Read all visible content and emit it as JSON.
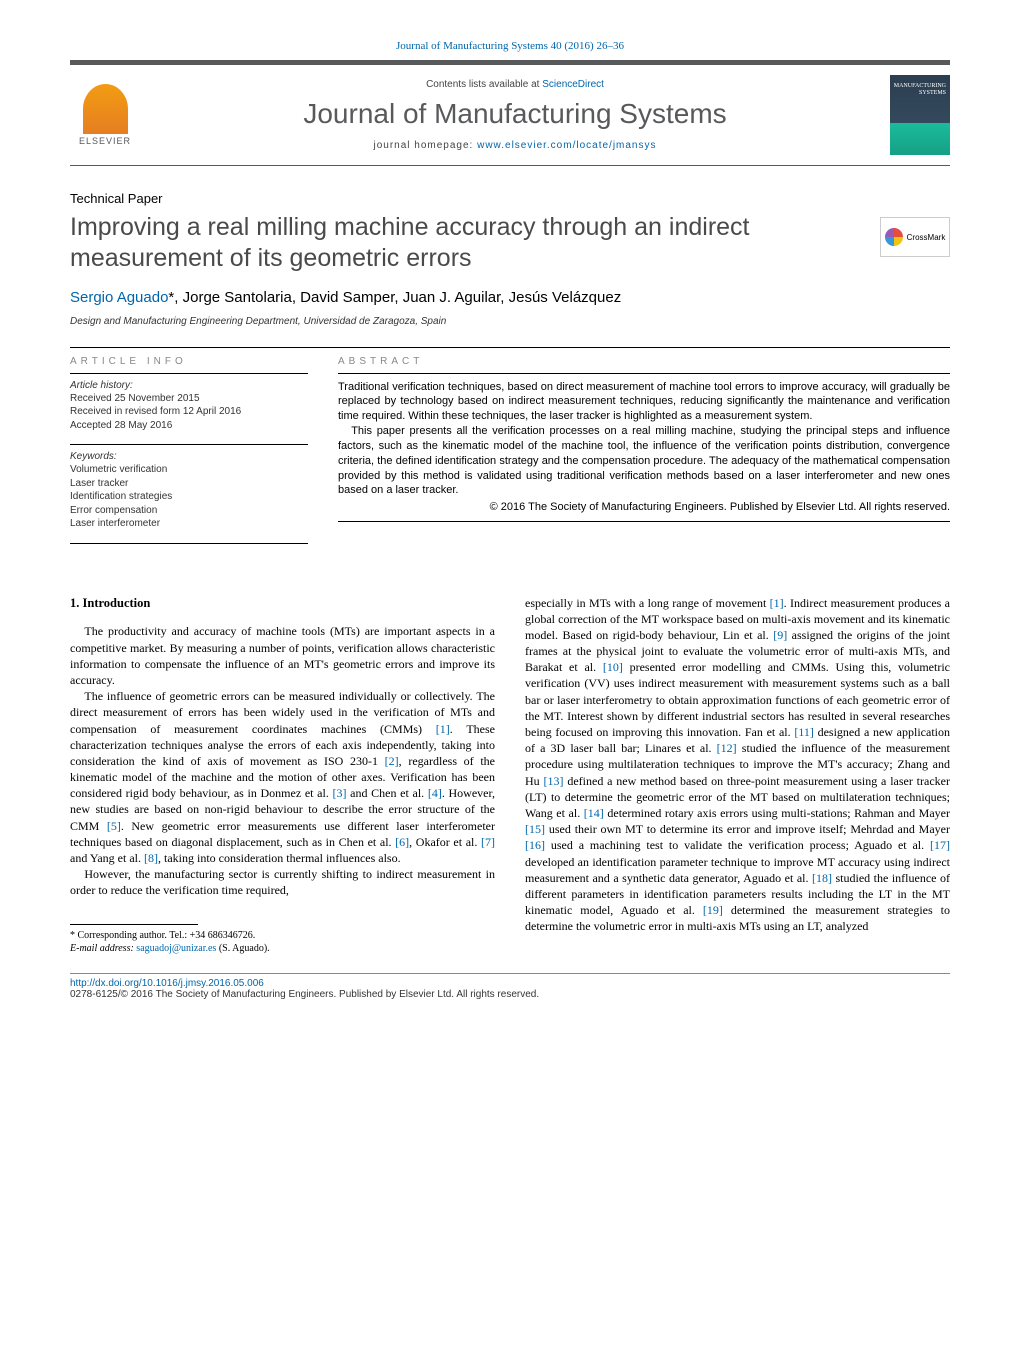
{
  "top_link": "Journal of Manufacturing Systems 40 (2016) 26–36",
  "header": {
    "elsevier": "ELSEVIER",
    "contents_prefix": "Contents lists available at ",
    "contents_link": "ScienceDirect",
    "journal_name": "Journal of Manufacturing Systems",
    "homepage_prefix": "journal homepage: ",
    "homepage_link": "www.elsevier.com/locate/jmansys",
    "cover_text": "MANUFACTURING SYSTEMS"
  },
  "paper_type": "Technical Paper",
  "title": "Improving a real milling machine accuracy through an indirect measurement of its geometric errors",
  "crossmark": "CrossMark",
  "authors_html": "Sergio Aguado",
  "authors_rest": ", Jorge Santolaria, David Samper, Juan J. Aguilar, Jesús Velázquez",
  "corresponding_mark": "*",
  "affiliation": "Design and Manufacturing Engineering Department, Universidad de Zaragoza, Spain",
  "article_info": {
    "heading": "ARTICLE INFO",
    "history_label": "Article history:",
    "received": "Received 25 November 2015",
    "revised": "Received in revised form 12 April 2016",
    "accepted": "Accepted 28 May 2016",
    "keywords_label": "Keywords:",
    "keywords": [
      "Volumetric verification",
      "Laser tracker",
      "Identification strategies",
      "Error compensation",
      "Laser interferometer"
    ]
  },
  "abstract": {
    "heading": "ABSTRACT",
    "p1": "Traditional verification techniques, based on direct measurement of machine tool errors to improve accuracy, will gradually be replaced by technology based on indirect measurement techniques, reducing significantly the maintenance and verification time required. Within these techniques, the laser tracker is highlighted as a measurement system.",
    "p2": "This paper presents all the verification processes on a real milling machine, studying the principal steps and influence factors, such as the kinematic model of the machine tool, the influence of the verification points distribution, convergence criteria, the defined identification strategy and the compensation procedure. The adequacy of the mathematical compensation provided by this method is validated using traditional verification methods based on a laser interferometer and new ones based on a laser tracker.",
    "copyright": "© 2016 The Society of Manufacturing Engineers. Published by Elsevier Ltd. All rights reserved."
  },
  "body": {
    "section_heading": "1. Introduction",
    "col1_p1": "The productivity and accuracy of machine tools (MTs) are important aspects in a competitive market. By measuring a number of points, verification allows characteristic information to compensate the influence of an MT's geometric errors and improve its accuracy.",
    "col1_p2_a": "The influence of geometric errors can be measured individually or collectively. The direct measurement of errors has been widely used in the verification of MTs and compensation of measurement coordinates machines (CMMs) ",
    "ref1": "[1]",
    "col1_p2_b": ". These characterization techniques analyse the errors of each axis independently, taking into consideration the kind of axis of movement as ISO 230-1 ",
    "ref2": "[2]",
    "col1_p2_c": ", regardless of the kinematic model of the machine and the motion of other axes. Verification has been considered rigid body behaviour, as in Donmez et al. ",
    "ref3": "[3]",
    "col1_p2_d": " and Chen et al. ",
    "ref4": "[4]",
    "col1_p2_e": ". However, new studies are based on non-rigid behaviour to describe the error structure of the CMM ",
    "ref5": "[5]",
    "col1_p2_f": ". New geometric error measurements use different laser interferometer techniques based on diagonal displacement, such as in Chen et al. ",
    "ref6": "[6]",
    "col1_p2_g": ", Okafor et al. ",
    "ref7": "[7]",
    "col1_p2_h": " and Yang et al. ",
    "ref8": "[8]",
    "col1_p2_i": ", taking into consideration thermal influences also.",
    "col1_p3": "However, the manufacturing sector is currently shifting to indirect measurement in order to reduce the verification time required,",
    "col2_p1_a": "especially in MTs with a long range of movement ",
    "col2_ref1": "[1]",
    "col2_p1_b": ". Indirect measurement produces a global correction of the MT workspace based on multi-axis movement and its kinematic model. Based on rigid-body behaviour, Lin et al. ",
    "col2_ref9": "[9]",
    "col2_p1_c": " assigned the origins of the joint frames at the physical joint to evaluate the volumetric error of multi-axis MTs, and Barakat et al. ",
    "col2_ref10": "[10]",
    "col2_p1_d": " presented error modelling and CMMs. Using this, volumetric verification (VV) uses indirect measurement with measurement systems such as a ball bar or laser interferometry to obtain approximation functions of each geometric error of the MT. Interest shown by different industrial sectors has resulted in several researches being focused on improving this innovation. Fan et al. ",
    "col2_ref11": "[11]",
    "col2_p1_e": " designed a new application of a 3D laser ball bar; Linares et al. ",
    "col2_ref12": "[12]",
    "col2_p1_f": " studied the influence of the measurement procedure using multilateration techniques to improve the MT's accuracy; Zhang and Hu ",
    "col2_ref13": "[13]",
    "col2_p1_g": " defined a new method based on three-point measurement using a laser tracker (LT) to determine the geometric error of the MT based on multilateration techniques; Wang et al. ",
    "col2_ref14": "[14]",
    "col2_p1_h": " determined rotary axis errors using multi-stations; Rahman and Mayer ",
    "col2_ref15": "[15]",
    "col2_p1_i": " used their own MT to determine its error and improve itself; Mehrdad and Mayer ",
    "col2_ref16": "[16]",
    "col2_p1_j": " used a machining test to validate the verification process; Aguado et al. ",
    "col2_ref17": "[17]",
    "col2_p1_k": " developed an identification parameter technique to improve MT accuracy using indirect measurement and a synthetic data generator, Aguado et al. ",
    "col2_ref18": "[18]",
    "col2_p1_l": " studied the influence of different parameters in identification parameters results including the LT in the MT kinematic model, Aguado et al. ",
    "col2_ref19": "[19]",
    "col2_p1_m": " determined the measurement strategies to determine the volumetric error in multi-axis MTs using an LT, analyzed"
  },
  "footnote": {
    "corr_label": "Corresponding author. Tel.: +34 686346726.",
    "email_label": "E-mail address: ",
    "email": "saguadoj@unizar.es",
    "email_name": " (S. Aguado)."
  },
  "bottom": {
    "doi": "http://dx.doi.org/10.1016/j.jmsy.2016.05.006",
    "issn_line": "0278-6125/© 2016 The Society of Manufacturing Engineers. Published by Elsevier Ltd. All rights reserved."
  },
  "colors": {
    "link": "#0066aa",
    "rule": "#58595b",
    "title": "#4a4a4a"
  }
}
